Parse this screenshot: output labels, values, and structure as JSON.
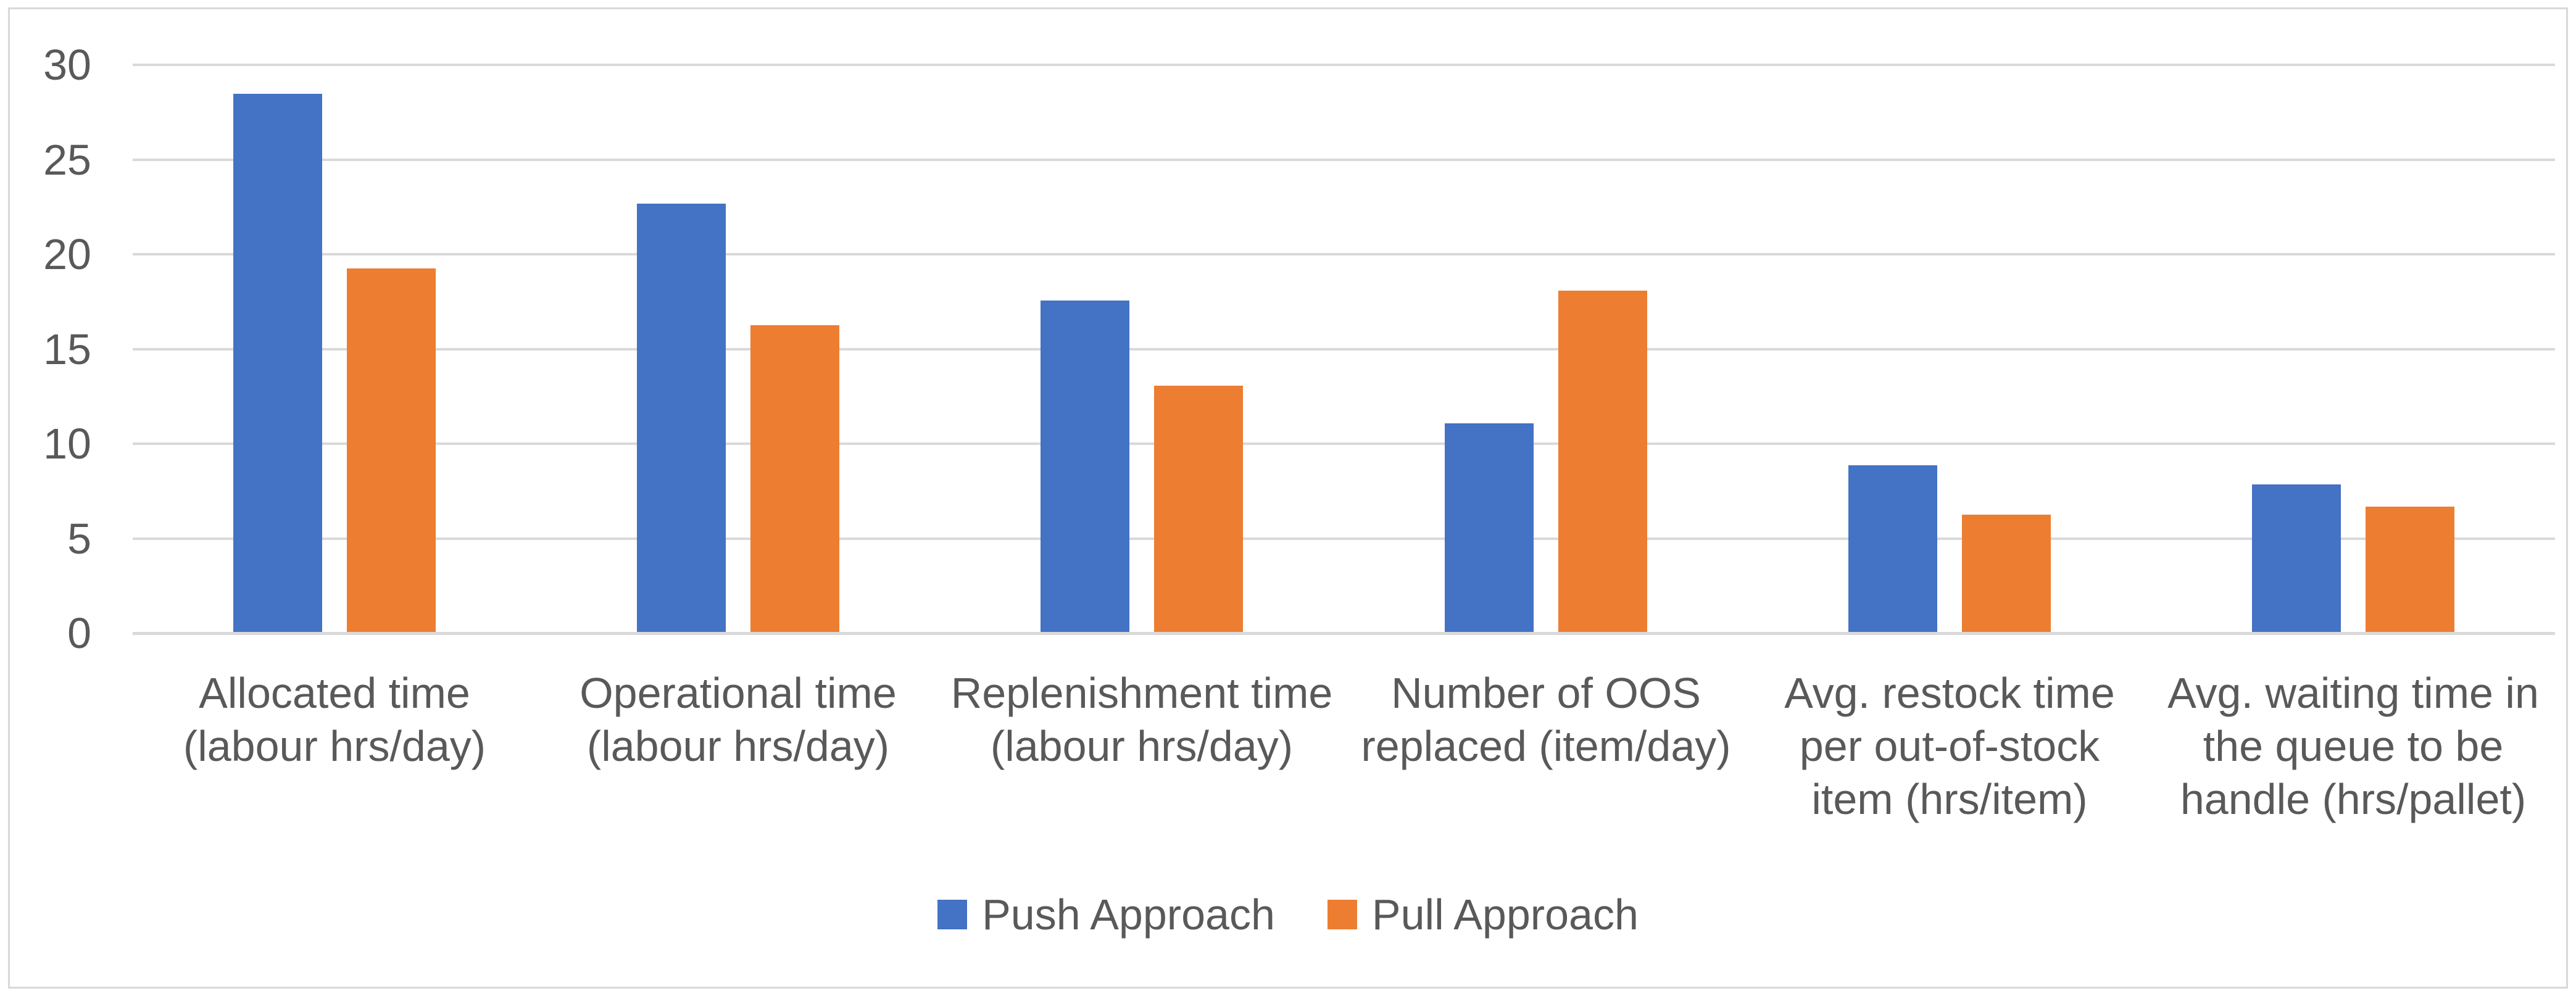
{
  "chart_data": {
    "type": "bar",
    "title": "",
    "categories": [
      "Allocated time\n(labour hrs/day)",
      "Operational time\n(labour hrs/day)",
      "Replenishment time\n(labour hrs/day)",
      "Number of OOS\nreplaced (item/day)",
      "Avg. restock time\nper out-of-stock\nitem (hrs/item)",
      "Avg. waiting time in\nthe queue to be\nhandle (hrs/pallet)"
    ],
    "series": [
      {
        "name": "Push Approach",
        "color": "#4472C4",
        "values": [
          28.4,
          22.6,
          17.5,
          11,
          8.8,
          7.8
        ]
      },
      {
        "name": "Pull Approach",
        "color": "#ED7D31",
        "values": [
          19.2,
          16.2,
          13,
          18,
          6.2,
          6.6
        ]
      }
    ],
    "ylim": [
      0,
      30
    ],
    "yticks": [
      "30",
      "25",
      "20",
      "15",
      "10",
      "5",
      "0"
    ],
    "grid": true,
    "legend_position": "bottom",
    "axis_text_color": "#595959",
    "gridline_color": "#D9D9D9",
    "frame_color": "#D9D9D9",
    "background_color": "#FFFFFF"
  }
}
